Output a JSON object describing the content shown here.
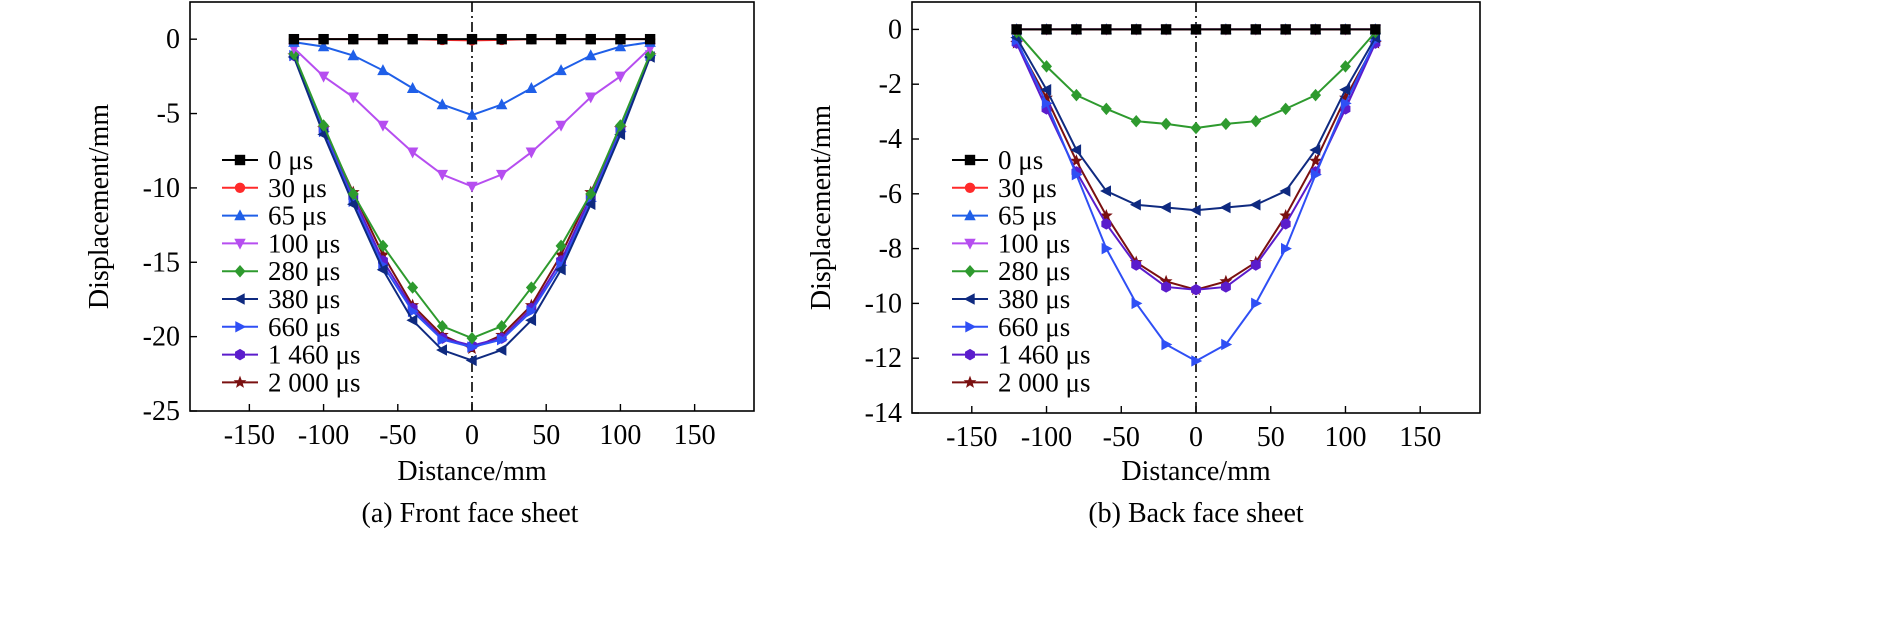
{
  "charts": [
    {
      "caption": "(a) Front face sheet",
      "chart_data": {
        "type": "line",
        "xlabel": "Distance/mm",
        "ylabel": "Displacement/mm",
        "xlim": [
          -190,
          190
        ],
        "ylim": [
          -25,
          2.5
        ],
        "xticks": [
          -150,
          -100,
          -50,
          0,
          50,
          100,
          150
        ],
        "yticks": [
          -25,
          -20,
          -15,
          -10,
          -5,
          0
        ],
        "x": [
          -120,
          -100,
          -80,
          -60,
          -40,
          -20,
          0,
          20,
          40,
          60,
          80,
          100,
          120
        ],
        "grid": false,
        "legend_position": "center-left",
        "reference_line": {
          "x": 0,
          "style": "dash-dot"
        },
        "series": [
          {
            "name": "0 μs",
            "color": "#000000",
            "marker": "square",
            "values": [
              0,
              0,
              0,
              0,
              0,
              0,
              0,
              0,
              0,
              0,
              0,
              0,
              0
            ]
          },
          {
            "name": "30 μs",
            "color": "#ff2a2a",
            "marker": "circle",
            "values": [
              0,
              0,
              0,
              0,
              0,
              -0.05,
              -0.08,
              -0.05,
              0,
              0,
              0,
              0,
              0
            ]
          },
          {
            "name": "65 μs",
            "color": "#1f5fe8",
            "marker": "triangle-up",
            "values": [
              -0.2,
              -0.5,
              -1.1,
              -2.1,
              -3.3,
              -4.4,
              -5.1,
              -4.4,
              -3.3,
              -2.1,
              -1.1,
              -0.5,
              -0.2
            ]
          },
          {
            "name": "100 μs",
            "color": "#b64ef0",
            "marker": "triangle-down",
            "values": [
              -0.6,
              -2.5,
              -3.9,
              -5.8,
              -7.6,
              -9.1,
              -9.9,
              -9.1,
              -7.6,
              -5.8,
              -3.9,
              -2.5,
              -0.6
            ]
          },
          {
            "name": "280 μs",
            "color": "#2e9a2e",
            "marker": "diamond",
            "values": [
              -1.0,
              -5.8,
              -10.4,
              -13.9,
              -16.7,
              -19.3,
              -20.1,
              -19.3,
              -16.7,
              -13.9,
              -10.4,
              -5.8,
              -1.0
            ]
          },
          {
            "name": "380 μs",
            "color": "#0f2a80",
            "marker": "triangle-left",
            "values": [
              -1.2,
              -6.4,
              -11.1,
              -15.5,
              -18.9,
              -20.9,
              -21.6,
              -20.9,
              -18.9,
              -15.5,
              -11.1,
              -6.4,
              -1.2
            ]
          },
          {
            "name": "660 μs",
            "color": "#2f4ff5",
            "marker": "triangle-right",
            "values": [
              -1.1,
              -6.2,
              -10.9,
              -15.2,
              -18.3,
              -20.2,
              -20.7,
              -20.2,
              -18.3,
              -15.2,
              -10.9,
              -6.2,
              -1.1
            ]
          },
          {
            "name": "1 460 μs",
            "color": "#5b1ccc",
            "marker": "hexagon",
            "values": [
              -1.1,
              -6.1,
              -10.6,
              -14.9,
              -18.1,
              -20.1,
              -20.6,
              -20.1,
              -18.1,
              -14.9,
              -10.6,
              -6.1,
              -1.1
            ]
          },
          {
            "name": "2 000 μs",
            "color": "#7a1010",
            "marker": "star",
            "values": [
              -1.1,
              -6.0,
              -10.3,
              -14.5,
              -17.9,
              -19.9,
              -20.8,
              -19.9,
              -17.9,
              -14.5,
              -10.3,
              -6.0,
              -1.1
            ]
          }
        ]
      }
    },
    {
      "caption": "(b) Back face sheet",
      "chart_data": {
        "type": "line",
        "xlabel": "Distance/mm",
        "ylabel": "Displacement/mm",
        "xlim": [
          -190,
          190
        ],
        "ylim": [
          -14,
          1
        ],
        "xticks": [
          -150,
          -100,
          -50,
          0,
          50,
          100,
          150
        ],
        "yticks": [
          -14,
          -12,
          -10,
          -8,
          -6,
          -4,
          -2,
          0
        ],
        "x": [
          -120,
          -100,
          -80,
          -60,
          -40,
          -20,
          0,
          20,
          40,
          60,
          80,
          100,
          120
        ],
        "grid": false,
        "legend_position": "center-left",
        "reference_line": {
          "x": 0,
          "style": "dash-dot"
        },
        "series": [
          {
            "name": "0 μs",
            "color": "#000000",
            "marker": "square",
            "values": [
              0,
              0,
              0,
              0,
              0,
              0,
              0,
              0,
              0,
              0,
              0,
              0,
              0
            ]
          },
          {
            "name": "30 μs",
            "color": "#ff2a2a",
            "marker": "circle",
            "values": [
              0,
              0,
              0,
              0,
              0,
              0,
              0,
              0,
              0,
              0,
              0,
              0,
              0
            ]
          },
          {
            "name": "65 μs",
            "color": "#1f5fe8",
            "marker": "triangle-up",
            "values": [
              0,
              0,
              0,
              0,
              0,
              0,
              0,
              0,
              0,
              0,
              0,
              0,
              0
            ]
          },
          {
            "name": "100 μs",
            "color": "#b64ef0",
            "marker": "triangle-down",
            "values": [
              0,
              0,
              0,
              0,
              0,
              0,
              0,
              0,
              0,
              0,
              0,
              0,
              0
            ]
          },
          {
            "name": "280 μs",
            "color": "#2e9a2e",
            "marker": "diamond",
            "values": [
              -0.1,
              -1.35,
              -2.4,
              -2.9,
              -3.35,
              -3.45,
              -3.6,
              -3.45,
              -3.35,
              -2.9,
              -2.4,
              -1.35,
              -0.1
            ]
          },
          {
            "name": "380 μs",
            "color": "#0f2a80",
            "marker": "triangle-left",
            "values": [
              -0.3,
              -2.2,
              -4.4,
              -5.9,
              -6.4,
              -6.5,
              -6.6,
              -6.5,
              -6.4,
              -5.9,
              -4.4,
              -2.2,
              -0.3
            ]
          },
          {
            "name": "660 μs",
            "color": "#2f4ff5",
            "marker": "triangle-right",
            "values": [
              -0.4,
              -2.7,
              -5.3,
              -8.0,
              -10.0,
              -11.5,
              -12.1,
              -11.5,
              -10.0,
              -8.0,
              -5.3,
              -2.7,
              -0.4
            ]
          },
          {
            "name": "1 460 μs",
            "color": "#5b1ccc",
            "marker": "hexagon",
            "values": [
              -0.5,
              -2.9,
              -5.2,
              -7.1,
              -8.6,
              -9.4,
              -9.5,
              -9.4,
              -8.6,
              -7.1,
              -5.2,
              -2.9,
              -0.5
            ]
          },
          {
            "name": "2 000 μs",
            "color": "#7a1010",
            "marker": "star",
            "values": [
              -0.5,
              -2.5,
              -4.8,
              -6.8,
              -8.5,
              -9.2,
              -9.5,
              -9.2,
              -8.5,
              -6.8,
              -4.8,
              -2.5,
              -0.5
            ]
          }
        ]
      }
    }
  ]
}
